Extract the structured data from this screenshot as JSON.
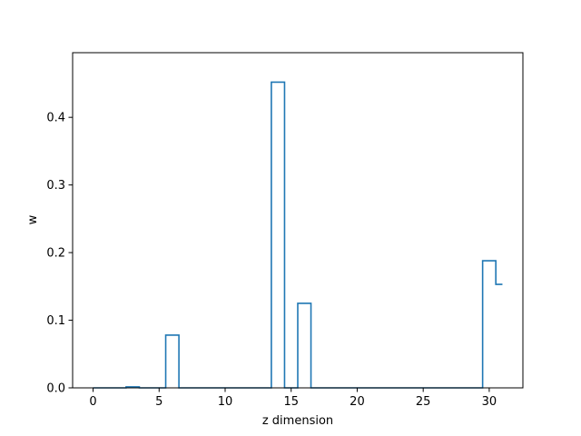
{
  "chart_data": {
    "type": "line",
    "subtype": "step",
    "xlabel": "z dimension",
    "ylabel": "w",
    "xlim": [
      -1.55,
      32.55
    ],
    "ylim": [
      0,
      0.4956
    ],
    "grid": false,
    "xticks": [
      0,
      5,
      10,
      15,
      20,
      25,
      30
    ],
    "xtick_labels": [
      "0",
      "5",
      "10",
      "15",
      "20",
      "25",
      "30"
    ],
    "yticks": [
      0,
      0.1,
      0.2,
      0.3,
      0.4
    ],
    "ytick_labels": [
      "0.0",
      "0.1",
      "0.2",
      "0.3",
      "0.4"
    ],
    "series": [
      {
        "color": "#1f77b4",
        "x": [
          0,
          1,
          2,
          3,
          4,
          5,
          6,
          7,
          8,
          9,
          10,
          11,
          12,
          13,
          14,
          15,
          16,
          17,
          18,
          19,
          20,
          21,
          22,
          23,
          24,
          25,
          26,
          27,
          28,
          29,
          30,
          31
        ],
        "values": [
          0,
          0,
          0,
          0.0015,
          0,
          0,
          0.078,
          0,
          0,
          0,
          0,
          0,
          0,
          0,
          0.452,
          0,
          0.125,
          0,
          0,
          0,
          0,
          0,
          0,
          0,
          0,
          0,
          0,
          0,
          0,
          0,
          0.188,
          0.153
        ]
      }
    ]
  }
}
